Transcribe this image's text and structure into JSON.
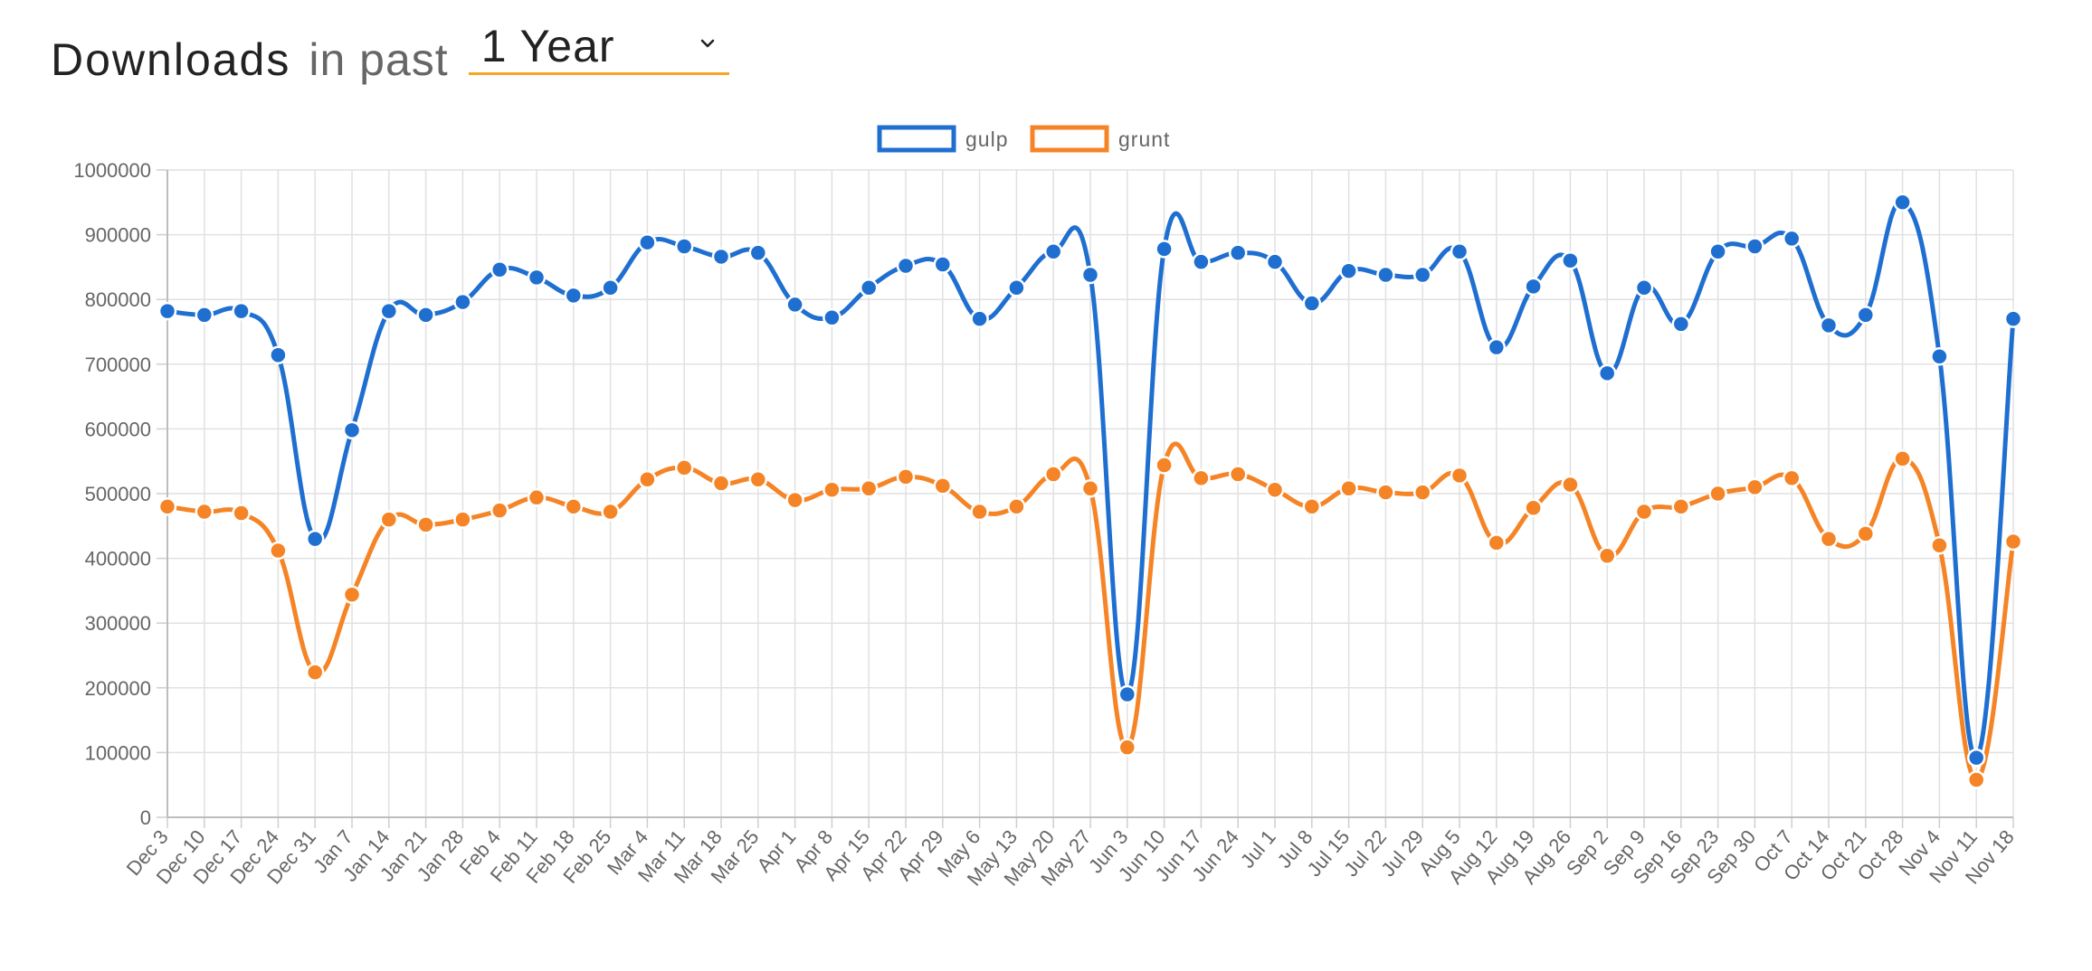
{
  "header": {
    "title": "Downloads",
    "subtitle": "in past",
    "range_selected": "1 Year",
    "chevron_icon": "chevron-down-icon"
  },
  "chart_data": {
    "type": "line",
    "title": "Downloads in past 1 Year",
    "xlabel": "",
    "ylabel": "",
    "ylim": [
      0,
      1000000
    ],
    "yticks": [
      "0",
      "100000",
      "200000",
      "300000",
      "400000",
      "500000",
      "600000",
      "700000",
      "800000",
      "900000",
      "1000000"
    ],
    "grid": true,
    "legend_position": "top-center",
    "categories": [
      "Dec 3",
      "Dec 10",
      "Dec 17",
      "Dec 24",
      "Dec 31",
      "Jan 7",
      "Jan 14",
      "Jan 21",
      "Jan 28",
      "Feb 4",
      "Feb 11",
      "Feb 18",
      "Feb 25",
      "Mar 4",
      "Mar 11",
      "Mar 18",
      "Mar 25",
      "Apr 1",
      "Apr 8",
      "Apr 15",
      "Apr 22",
      "Apr 29",
      "May 6",
      "May 13",
      "May 20",
      "May 27",
      "Jun 3",
      "Jun 10",
      "Jun 17",
      "Jun 24",
      "Jul 1",
      "Jul 8",
      "Jul 15",
      "Jul 22",
      "Jul 29",
      "Aug 5",
      "Aug 12",
      "Aug 19",
      "Aug 26",
      "Sep 2",
      "Sep 9",
      "Sep 16",
      "Sep 23",
      "Sep 30",
      "Oct 7",
      "Oct 14",
      "Oct 21",
      "Oct 28",
      "Nov 4",
      "Nov 11",
      "Nov 18"
    ],
    "series": [
      {
        "name": "gulp",
        "color": "#1f6fd1",
        "values": [
          782000,
          776000,
          782000,
          714000,
          430000,
          598000,
          782000,
          776000,
          796000,
          846000,
          834000,
          806000,
          818000,
          888000,
          882000,
          866000,
          872000,
          792000,
          772000,
          818000,
          852000,
          854000,
          770000,
          818000,
          874000,
          838000,
          190000,
          878000,
          858000,
          872000,
          858000,
          794000,
          844000,
          838000,
          838000,
          874000,
          726000,
          820000,
          860000,
          686000,
          818000,
          762000,
          874000,
          882000,
          894000,
          760000,
          776000,
          950000,
          712000,
          92000,
          770000
        ]
      },
      {
        "name": "grunt",
        "color": "#f58426",
        "values": [
          480000,
          472000,
          470000,
          412000,
          224000,
          344000,
          460000,
          452000,
          460000,
          474000,
          494000,
          480000,
          472000,
          522000,
          540000,
          516000,
          522000,
          490000,
          506000,
          508000,
          526000,
          512000,
          472000,
          480000,
          530000,
          508000,
          108000,
          544000,
          524000,
          530000,
          506000,
          480000,
          508000,
          502000,
          502000,
          528000,
          424000,
          478000,
          514000,
          404000,
          472000,
          480000,
          500000,
          510000,
          524000,
          430000,
          438000,
          554000,
          420000,
          58000,
          426000
        ]
      }
    ]
  }
}
